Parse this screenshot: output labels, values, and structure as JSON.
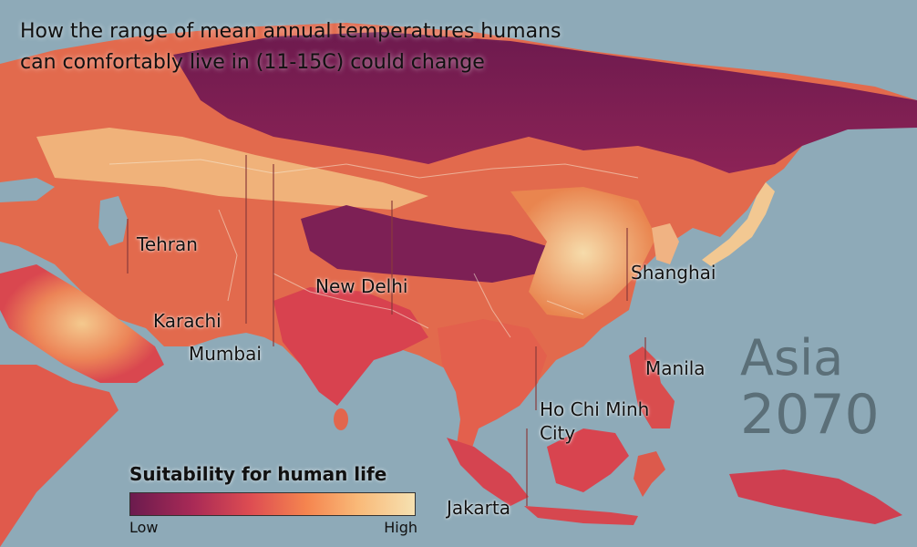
{
  "title": {
    "line1": "How the range of mean annual temperatures humans",
    "line2": "can comfortably live in (11-15C) could change"
  },
  "region": {
    "name": "Asia",
    "year": "2070"
  },
  "cities": [
    {
      "id": "tehran",
      "label": "Tehran"
    },
    {
      "id": "new-delhi",
      "label": "New Delhi"
    },
    {
      "id": "karachi",
      "label": "Karachi"
    },
    {
      "id": "mumbai",
      "label": "Mumbai"
    },
    {
      "id": "shanghai",
      "label": "Shanghai"
    },
    {
      "id": "manila",
      "label": "Manila"
    },
    {
      "id": "ho-chi-minh",
      "label_line1": "Ho Chi Minh",
      "label_line2": "City"
    },
    {
      "id": "jakarta",
      "label": "Jakarta"
    }
  ],
  "legend": {
    "title": "Suitability for human life",
    "low": "Low",
    "high": "High",
    "colors": [
      "#6b1b4e",
      "#a92a56",
      "#dd4c52",
      "#f5854f",
      "#f9b978",
      "#f6e1b1"
    ]
  },
  "colors": {
    "ocean": "#8eaab8",
    "land_low": "#7a1f54",
    "land_mid": "#e4584f",
    "land_high": "#f3d8a6"
  }
}
